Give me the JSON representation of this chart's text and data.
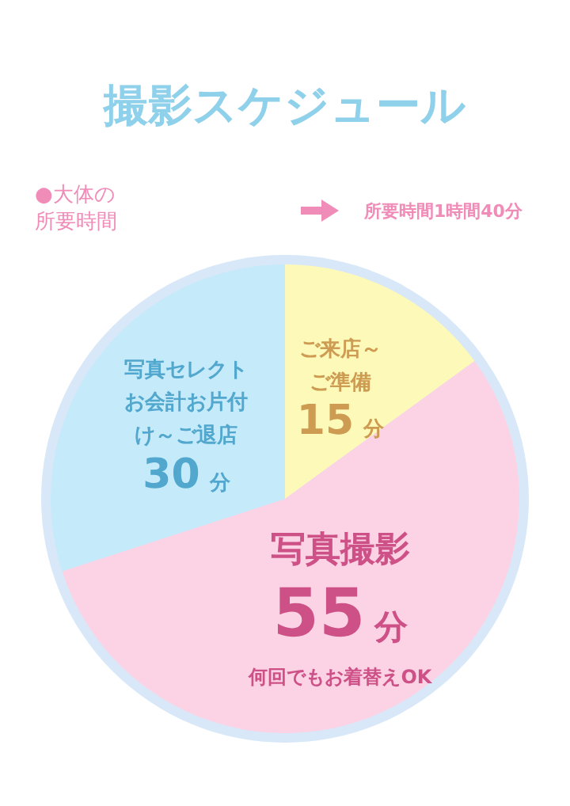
{
  "chart_data": {
    "type": "pie",
    "title": "撮影スケジュール",
    "categories": [
      "ご来店～ご準備",
      "写真撮影",
      "写真セレクトお会計お片付け～ご退店"
    ],
    "values": [
      15,
      55,
      30
    ],
    "colors": [
      "#fdf9b8",
      "#fcd3e5",
      "#c5eafa"
    ],
    "value_labels": [
      "15分",
      "55分",
      "30分"
    ],
    "legend": false,
    "annotations": [
      "●大体の所要時間",
      "所要時間1時間40分",
      {
        "text": "何回でもお着替えOK",
        "x": "写真撮影"
      }
    ]
  }
}
